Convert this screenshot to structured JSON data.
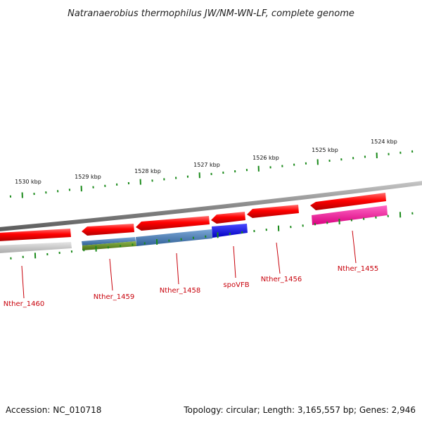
{
  "header": {
    "title": "Natranaerobius thermophilus JW/NM-WN-LF, complete genome"
  },
  "scale": {
    "labels": [
      "1530 kbp",
      "1529 kbp",
      "1528 kbp",
      "1527 kbp",
      "1526 kbp",
      "1525 kbp",
      "1524 kbp"
    ]
  },
  "genes": [
    {
      "label": "Nther_1460",
      "color": "#ff0000"
    },
    {
      "label": "Nther_1459",
      "color": "#ff0000"
    },
    {
      "label": "Nther_1458",
      "color": "#ff0000"
    },
    {
      "label": "spoVFB",
      "color": "#ff0000"
    },
    {
      "label": "Nther_1456",
      "color": "#ff0000"
    },
    {
      "label": "Nther_1455",
      "color": "#ff0000"
    }
  ],
  "colors": {
    "cds": "#ff0000",
    "backbone": "#8a8a8a",
    "tick": "#1a8a1a",
    "label": "#c8000a",
    "band_gray": "#c8c8c8",
    "band_steelblue": "#4a7fb5",
    "band_olive": "#5f8a1e",
    "band_blue": "#0000ff",
    "band_magenta": "#ff1aa0"
  },
  "footer": {
    "accession": "Accession: NC_010718",
    "topology": "Topology: circular; Length: 3,165,557 bp; Genes: 2,946"
  }
}
